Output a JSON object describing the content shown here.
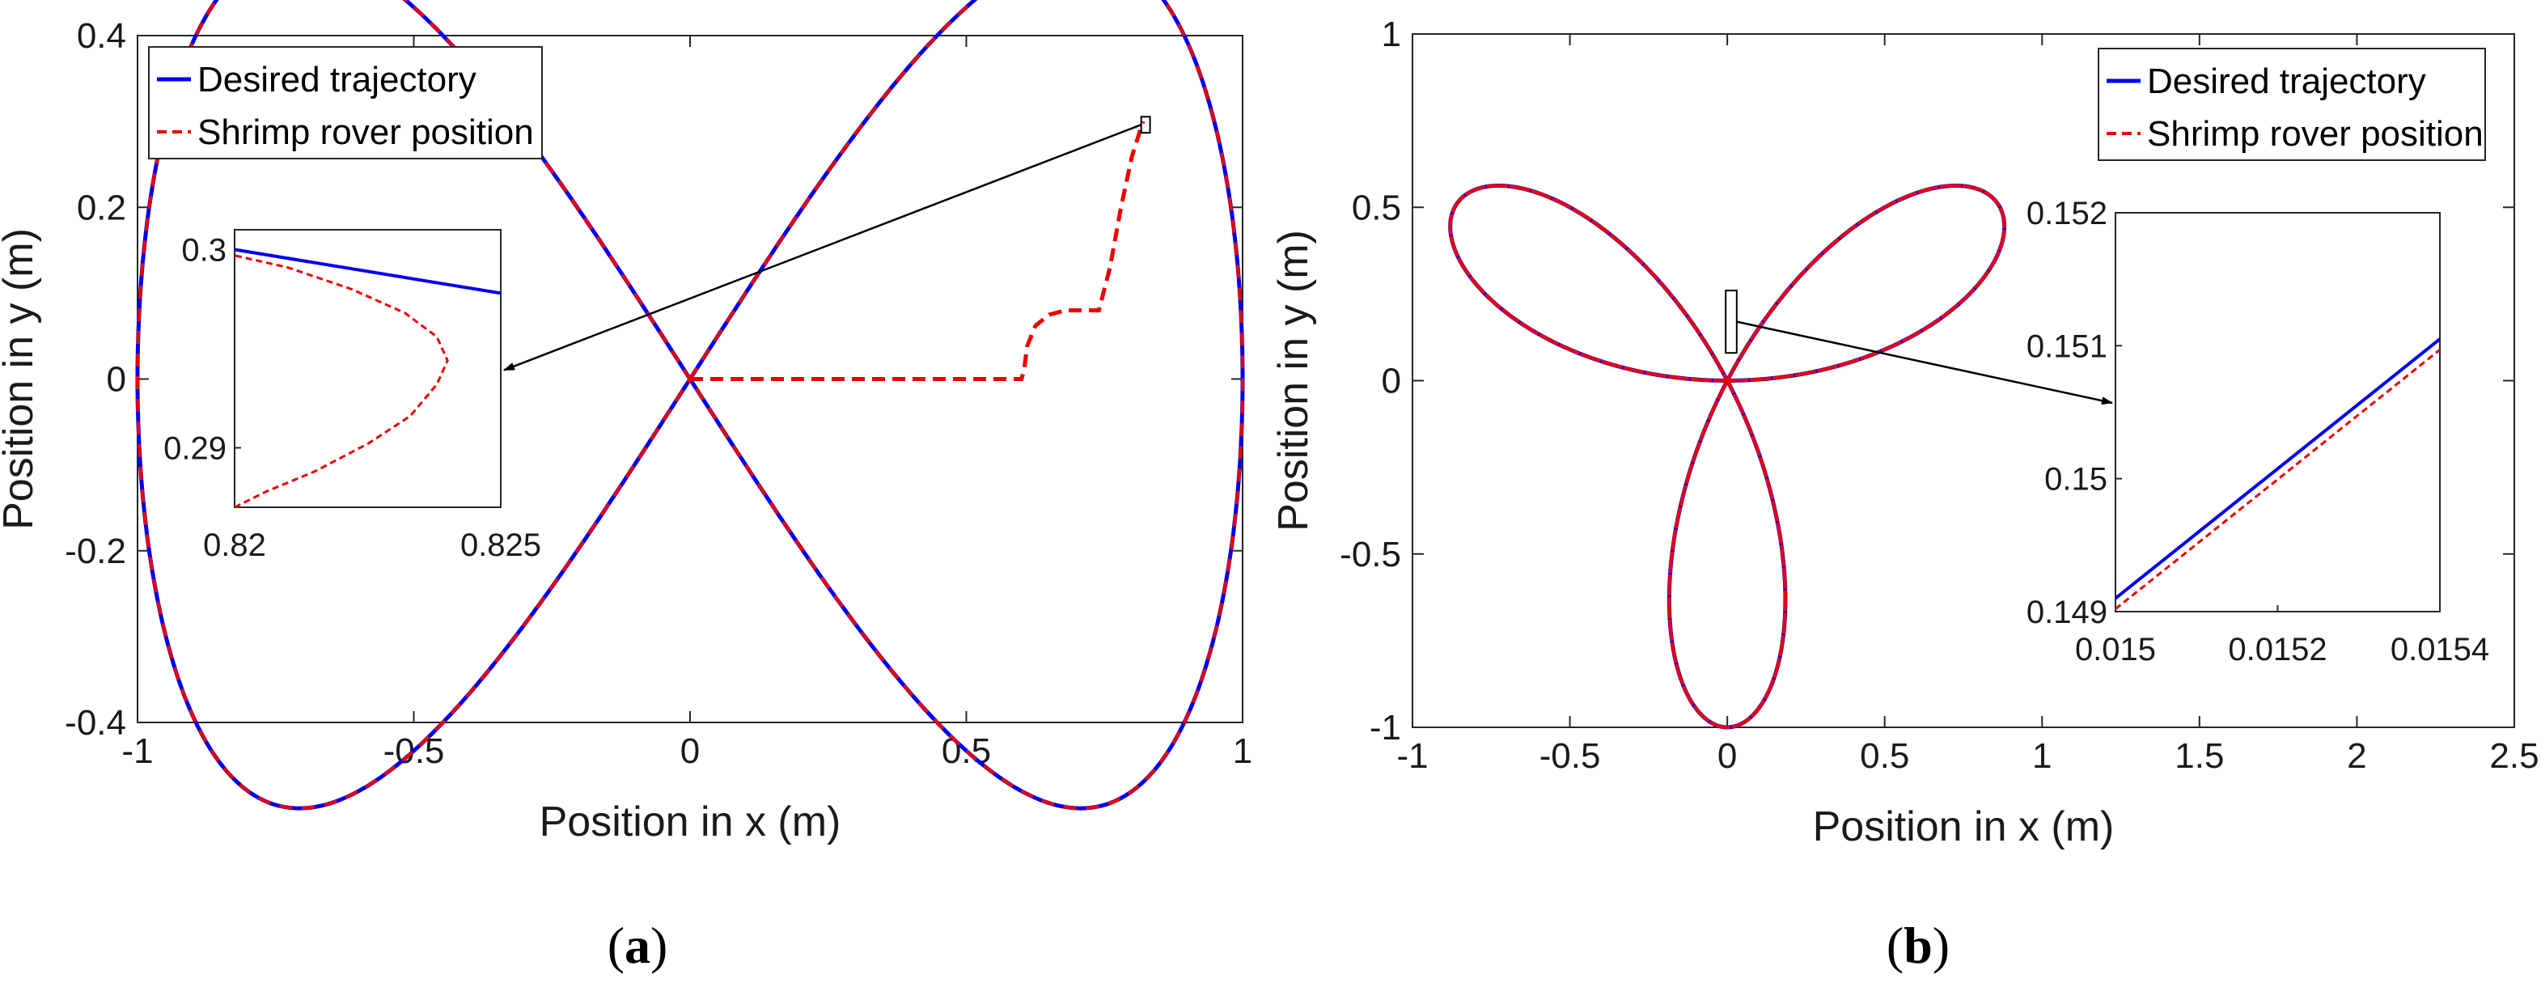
{
  "colors": {
    "desired": "#0000ee",
    "rover": "#ee0000",
    "axis": "#262626",
    "arrow": "#000000"
  },
  "chart_data": [
    {
      "type": "line",
      "subfigure": "a",
      "caption_open": "(",
      "caption_letter": "a",
      "caption_close": ")",
      "xlabel": "Position in x (m)",
      "ylabel": "Position in y (m)",
      "xlim": [
        -1,
        1
      ],
      "ylim": [
        -0.4,
        0.4
      ],
      "xticks": [
        -1,
        -0.5,
        0,
        0.5,
        1
      ],
      "xtick_labels": [
        "-1",
        "-0.5",
        "0",
        "0.5",
        "1"
      ],
      "yticks": [
        -0.4,
        -0.2,
        0,
        0.2,
        0.4
      ],
      "ytick_labels": [
        "-0.4",
        "-0.2",
        "0",
        "0.2",
        "0.4"
      ],
      "grid": false,
      "legend_position": "top-left",
      "series": [
        {
          "name": "Desired trajectory",
          "style": "solid",
          "curve": "lemniscate of Gerono x = sin(t), y = sin(t)cos(t), t in [0, 2pi]"
        },
        {
          "name": "Shrimp rover position",
          "style": "dashed",
          "curve": "path from origin then follows desired trajectory",
          "x": [
            0,
            0.6,
            0.605,
            0.61,
            0.625,
            0.65,
            0.68,
            0.72,
            0.74,
            0.76,
            0.78,
            0.8,
            0.815,
            0.82
          ],
          "y": [
            0,
            0,
            0.012,
            0.038,
            0.062,
            0.075,
            0.08,
            0.08,
            0.08,
            0.13,
            0.2,
            0.26,
            0.29,
            0.3
          ]
        }
      ],
      "inset": {
        "xlim": [
          0.82,
          0.825
        ],
        "ylim": [
          0.287,
          0.301
        ],
        "xticks": [
          0.82,
          0.825
        ],
        "xtick_labels": [
          "0.82",
          "0.825"
        ],
        "yticks": [
          0.29,
          0.3
        ],
        "ytick_labels": [
          "0.29",
          "0.3"
        ],
        "desired": {
          "x": [
            0.82,
            0.825
          ],
          "y": [
            0.3,
            0.2978
          ]
        },
        "rover": {
          "x": [
            0.82,
            0.8206,
            0.8215,
            0.8225,
            0.8233,
            0.8238,
            0.824,
            0.8238,
            0.8232,
            0.8222,
            0.821,
            0.82
          ],
          "y": [
            0.287,
            0.2878,
            0.2888,
            0.2902,
            0.2916,
            0.2932,
            0.2944,
            0.2956,
            0.2968,
            0.298,
            0.2991,
            0.2997
          ]
        },
        "zoom_region_x": [
          0.8165,
          0.8325
        ],
        "zoom_region_y": [
          0.2868,
          0.3055
        ]
      }
    },
    {
      "type": "line",
      "subfigure": "b",
      "caption_open": "(",
      "caption_letter": "b",
      "caption_close": ")",
      "xlabel": "Position in x (m)",
      "ylabel": "Position in y (m)",
      "xlim": [
        -1,
        2.5
      ],
      "ylim": [
        -1,
        1
      ],
      "xticks": [
        -1,
        -0.5,
        0,
        0.5,
        1,
        1.5,
        2,
        2.5
      ],
      "xtick_labels": [
        "-1",
        "-0.5",
        "0",
        "0.5",
        "1",
        "1.5",
        "2",
        "2.5"
      ],
      "yticks": [
        -1,
        -0.5,
        0,
        0.5,
        1
      ],
      "ytick_labels": [
        "-1",
        "-0.5",
        "0",
        "0.5",
        "1"
      ],
      "grid": false,
      "legend_position": "top-right",
      "series": [
        {
          "name": "Desired trajectory",
          "style": "solid",
          "curve": "rose r = sin(3t), six petals"
        },
        {
          "name": "Shrimp rover position",
          "style": "dashed",
          "curve": "overlaps desired trajectory"
        }
      ],
      "inset": {
        "xlim": [
          0.015,
          0.0154
        ],
        "ylim": [
          0.149,
          0.152
        ],
        "xticks": [
          0.015,
          0.0152,
          0.0154
        ],
        "xtick_labels": [
          "0.015",
          "0.0152",
          "0.0154"
        ],
        "yticks": [
          0.149,
          0.15,
          0.151,
          0.152
        ],
        "ytick_labels": [
          "0.149",
          "0.15",
          "0.151",
          "0.152"
        ],
        "desired": {
          "x": [
            0.015,
            0.0154
          ],
          "y": [
            0.1491,
            0.15105
          ]
        },
        "rover": {
          "x": [
            0.015,
            0.0154
          ],
          "y": [
            0.14902,
            0.15097
          ]
        },
        "zoom_region_x": [
          -0.005,
          0.03
        ],
        "zoom_region_y": [
          0.08,
          0.26
        ]
      }
    }
  ]
}
